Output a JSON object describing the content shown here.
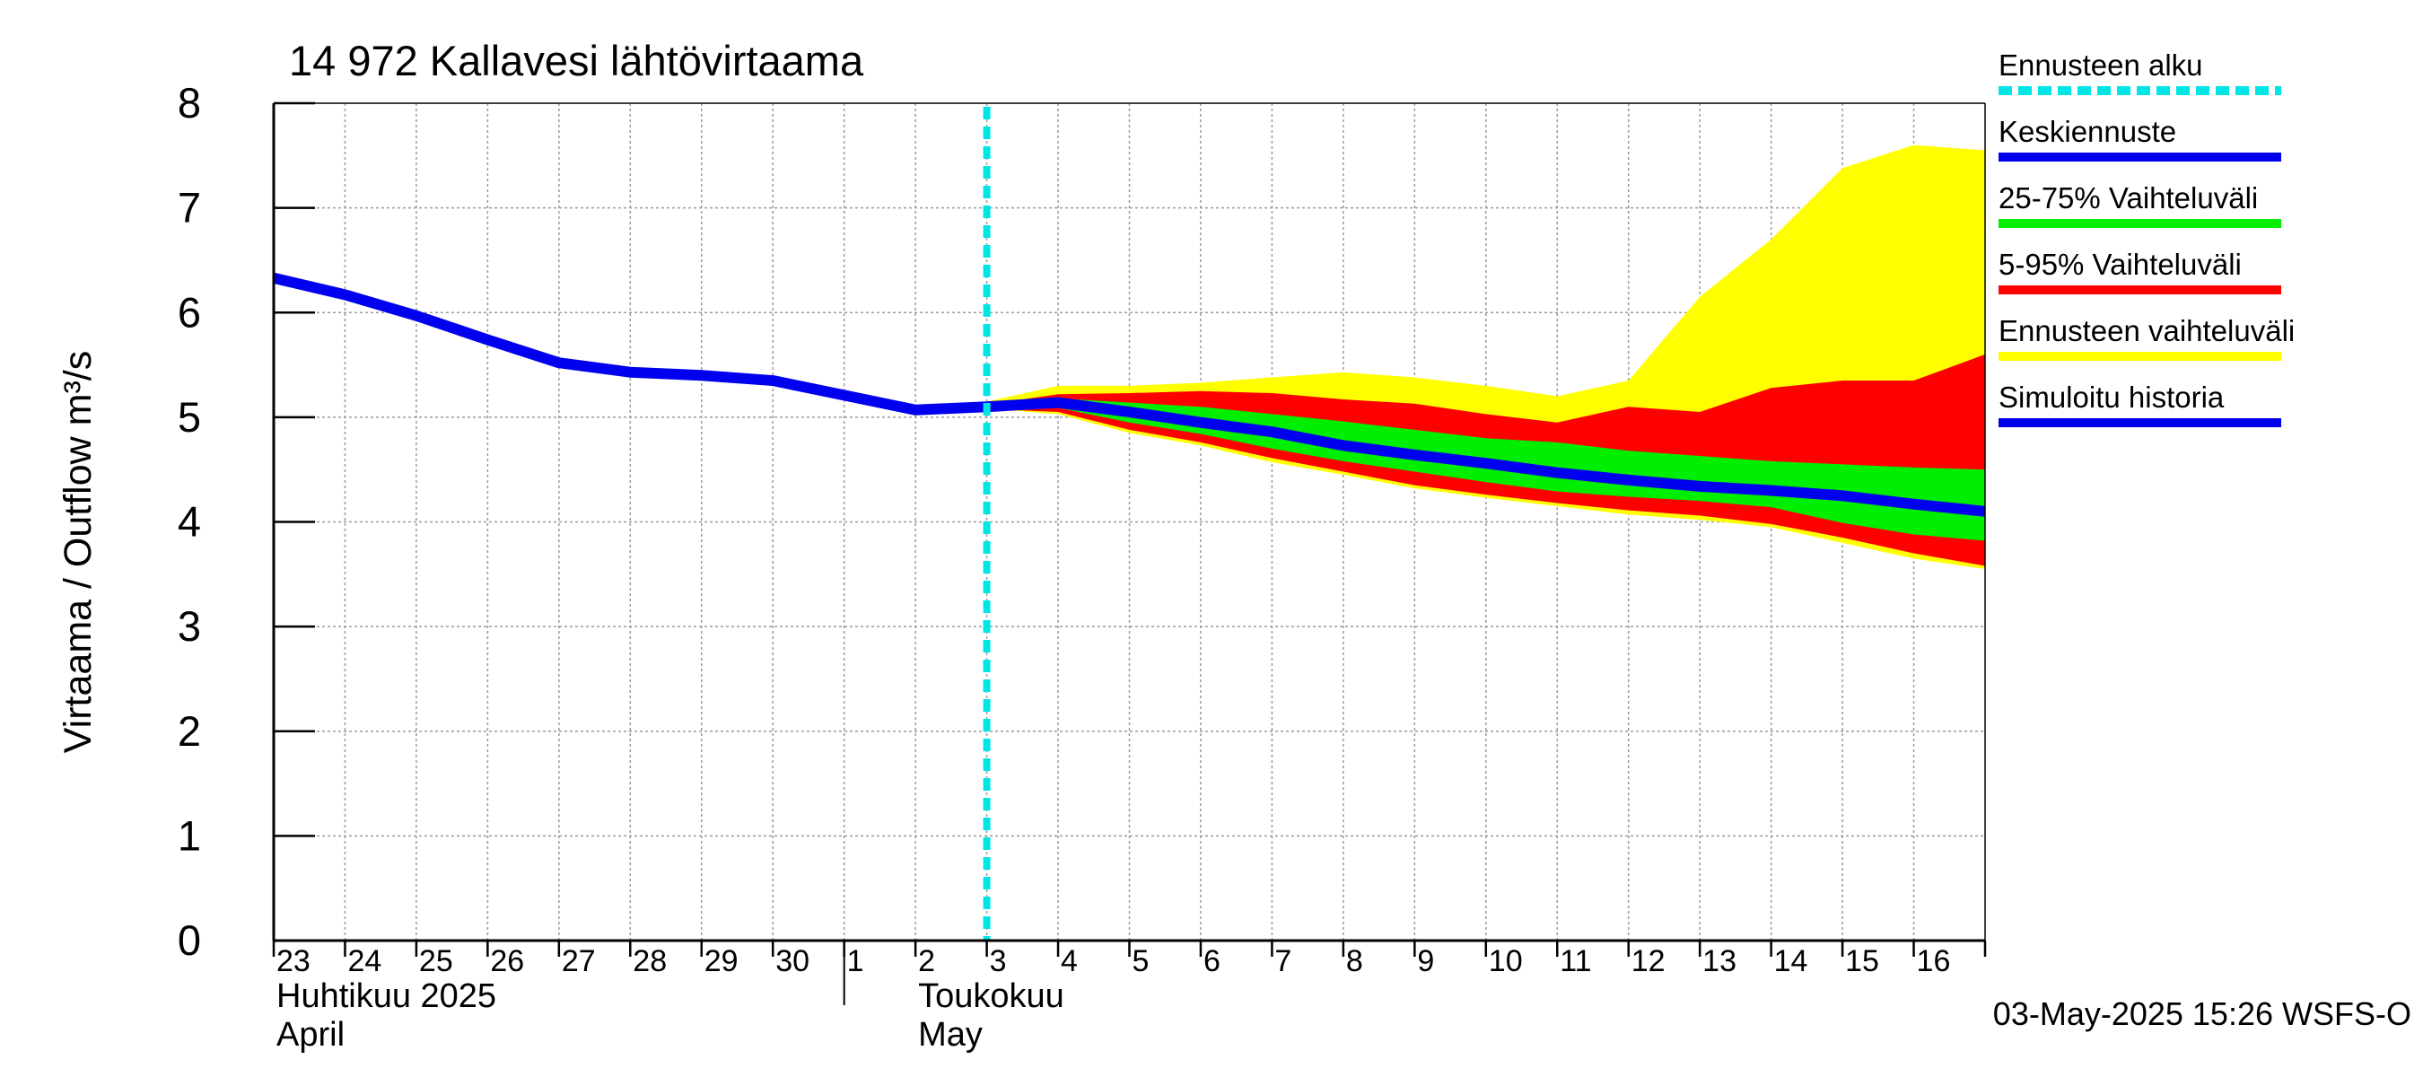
{
  "chart_data": {
    "type": "area",
    "title": "14 972 Kallavesi lähtövirtaama",
    "ylabel": "Virtaama / Outflow    m³/s",
    "ylim": [
      0,
      8
    ],
    "yticks": [
      "0",
      "1",
      "2",
      "3",
      "4",
      "5",
      "6",
      "7",
      "8"
    ],
    "x_day_labels": [
      "23",
      "24",
      "25",
      "26",
      "27",
      "28",
      "29",
      "30",
      "1",
      "2",
      "3",
      "4",
      "5",
      "6",
      "7",
      "8",
      "9",
      "10",
      "11",
      "12",
      "13",
      "14",
      "15",
      "16"
    ],
    "x_day_positions": [
      0,
      1,
      2,
      3,
      4,
      5,
      6,
      7,
      8,
      9,
      10,
      11,
      12,
      13,
      14,
      15,
      16,
      17,
      18,
      19,
      20,
      21,
      22,
      23
    ],
    "xlim": [
      0,
      24
    ],
    "month_labels": [
      {
        "line1": "Huhtikuu  2025",
        "line2": "April",
        "at": 0
      },
      {
        "line1": "Toukokuu",
        "line2": "May",
        "at": 9
      }
    ],
    "month_separator_at": 8,
    "forecast_start": 10,
    "grid": true,
    "legend_position": "right",
    "legend": [
      {
        "label": "Ennusteen alku",
        "color": "#00e5e5",
        "style": "dashed"
      },
      {
        "label": "Keskiennuste",
        "color": "#0000ee",
        "style": "solid"
      },
      {
        "label": "25-75% Vaihteluväli",
        "color": "#00ee00",
        "style": "solid"
      },
      {
        "label": "5-95% Vaihteluväli",
        "color": "#ff0000",
        "style": "solid"
      },
      {
        "label": "Ennusteen vaihteluväli",
        "color": "#ffff00",
        "style": "solid"
      },
      {
        "label": "Simuloitu historia",
        "color": "#0000ee",
        "style": "solid"
      }
    ],
    "series": [
      {
        "name": "Simuloitu historia",
        "x": [
          0,
          1,
          2,
          3,
          4,
          5,
          6,
          7,
          8,
          9,
          10
        ],
        "y": [
          6.33,
          6.17,
          5.97,
          5.74,
          5.52,
          5.43,
          5.4,
          5.35,
          5.21,
          5.07,
          5.1
        ]
      },
      {
        "name": "Keskiennuste",
        "x": [
          10,
          11,
          12,
          13,
          14,
          15,
          16,
          17,
          18,
          19,
          20,
          21,
          22,
          23,
          24
        ],
        "y": [
          5.1,
          5.14,
          5.05,
          4.95,
          4.86,
          4.73,
          4.64,
          4.56,
          4.47,
          4.4,
          4.34,
          4.3,
          4.25,
          4.17,
          4.1
        ]
      }
    ],
    "bands": [
      {
        "name": "Ennusteen vaihteluväli",
        "color": "#ffff00",
        "x": [
          9,
          10,
          11,
          12,
          13,
          14,
          15,
          16,
          17,
          18,
          19,
          20,
          21,
          22,
          23,
          24
        ],
        "upper": [
          5.07,
          5.15,
          5.3,
          5.3,
          5.33,
          5.38,
          5.43,
          5.38,
          5.3,
          5.2,
          5.35,
          6.15,
          6.7,
          7.38,
          7.6,
          7.55
        ],
        "lower": [
          5.07,
          5.08,
          5.03,
          4.85,
          4.73,
          4.57,
          4.45,
          4.32,
          4.23,
          4.15,
          4.07,
          4.02,
          3.95,
          3.8,
          3.65,
          3.55
        ]
      },
      {
        "name": "5-95% Vaihteluväli",
        "color": "#ff0000",
        "x": [
          9,
          10,
          11,
          12,
          13,
          14,
          15,
          16,
          17,
          18,
          19,
          20,
          21,
          22,
          23,
          24
        ],
        "upper": [
          5.07,
          5.12,
          5.22,
          5.23,
          5.25,
          5.23,
          5.17,
          5.13,
          5.03,
          4.95,
          5.1,
          5.05,
          5.28,
          5.35,
          5.35,
          5.6
        ],
        "lower": [
          5.07,
          5.08,
          5.05,
          4.88,
          4.76,
          4.61,
          4.48,
          4.35,
          4.26,
          4.18,
          4.11,
          4.06,
          3.98,
          3.85,
          3.7,
          3.58
        ]
      },
      {
        "name": "25-75% Vaihteluväli",
        "color": "#00ee00",
        "x": [
          9,
          10,
          11,
          12,
          13,
          14,
          15,
          16,
          17,
          18,
          19,
          20,
          21,
          22,
          23,
          24
        ],
        "upper": [
          5.07,
          5.11,
          5.18,
          5.14,
          5.1,
          5.03,
          4.96,
          4.88,
          4.8,
          4.76,
          4.68,
          4.63,
          4.58,
          4.55,
          4.52,
          4.5
        ],
        "lower": [
          5.07,
          5.09,
          5.09,
          4.95,
          4.84,
          4.7,
          4.58,
          4.48,
          4.38,
          4.29,
          4.24,
          4.2,
          4.14,
          3.99,
          3.88,
          3.82
        ]
      }
    ]
  },
  "footer": {
    "timestamp": "03-May-2025 15:26 WSFS-O"
  }
}
